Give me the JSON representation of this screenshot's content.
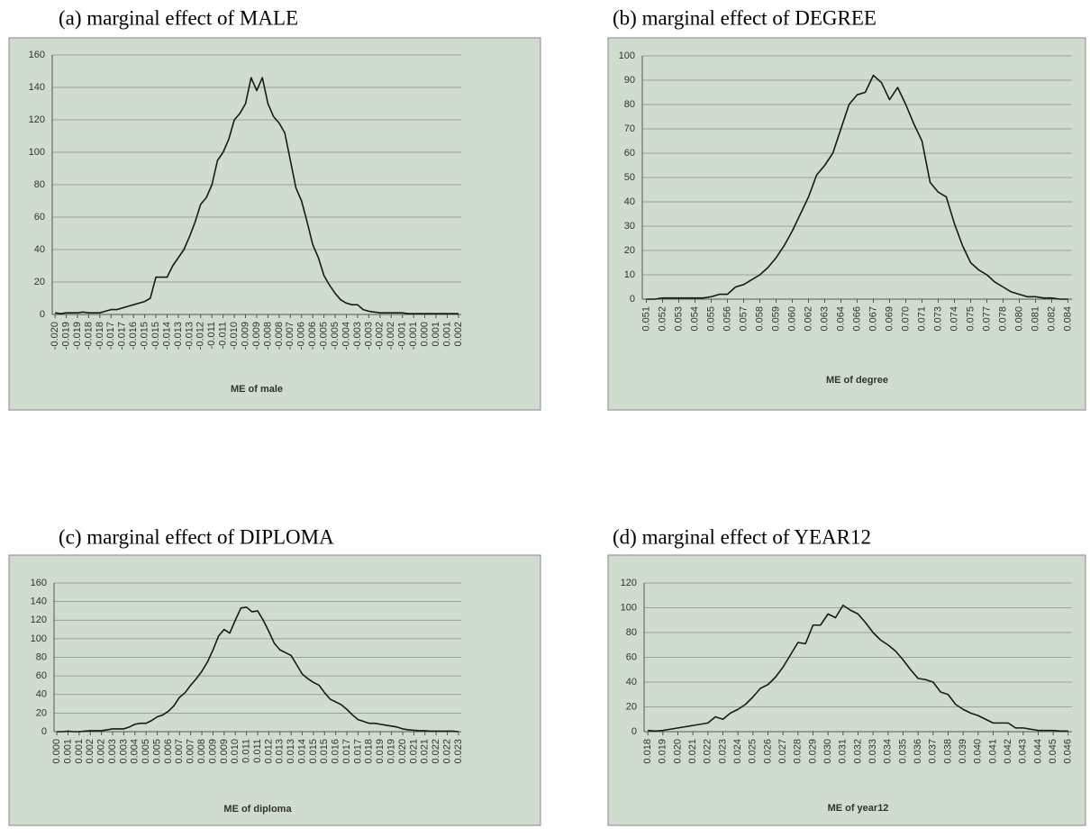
{
  "chart_data": [
    {
      "type": "line",
      "title": "(a) marginal effect of MALE",
      "x_label": "ME of male",
      "color": "#1a1a1a",
      "grid": true,
      "ylim": [
        0,
        160
      ],
      "yticks": [
        0,
        20,
        40,
        60,
        80,
        100,
        120,
        140,
        160
      ],
      "categories": [
        "-0.020",
        null,
        "-0.019",
        null,
        "-0.019",
        null,
        "-0.018",
        null,
        "-0.018",
        null,
        "-0.017",
        null,
        "-0.017",
        null,
        "-0.016",
        null,
        "-0.015",
        null,
        "-0.015",
        null,
        "-0.014",
        null,
        "-0.013",
        null,
        "-0.013",
        null,
        "-0.012",
        null,
        "-0.011",
        null,
        "-0.011",
        null,
        "-0.010",
        null,
        "-0.009",
        null,
        "-0.009",
        null,
        "-0.008",
        null,
        "-0.008",
        null,
        "-0.007",
        null,
        "-0.006",
        null,
        "-0.006",
        null,
        "-0.005",
        null,
        "-0.005",
        null,
        "-0.004",
        null,
        "-0.003",
        null,
        "-0.003",
        null,
        "-0.002",
        null,
        "-0.002",
        null,
        "-0.001",
        null,
        "-0.001",
        null,
        "0.000",
        null,
        "0.001",
        null,
        "0.001",
        null,
        "0.002"
      ],
      "values": [
        1,
        0.5,
        1,
        1,
        1,
        1.5,
        1,
        1,
        1,
        2,
        3,
        3,
        4,
        5,
        6,
        7,
        8,
        10,
        23,
        23,
        23,
        30,
        35,
        40,
        48,
        57,
        68,
        72,
        80,
        95,
        100,
        108,
        120,
        124,
        130,
        146,
        138,
        146,
        130,
        122,
        118,
        112,
        95,
        78,
        70,
        57,
        43,
        35,
        24,
        18,
        13,
        9,
        7,
        6,
        6,
        3,
        2,
        1.5,
        1,
        1,
        1,
        1,
        1,
        0.5,
        0.5,
        0.5,
        0.5,
        0.5,
        0.5,
        0.5,
        0.5,
        0.5,
        0.5
      ]
    },
    {
      "type": "line",
      "title": "(b) marginal effect of DEGREE",
      "x_label": "ME of degree",
      "color": "#1a1a1a",
      "grid": true,
      "ylim": [
        0,
        100
      ],
      "yticks": [
        0,
        10,
        20,
        30,
        40,
        50,
        60,
        70,
        80,
        90,
        100
      ],
      "categories": [
        "0.051",
        null,
        "0.052",
        null,
        "0.053",
        null,
        "0.054",
        null,
        "0.055",
        null,
        "0.056",
        null,
        "0.057",
        null,
        "0.058",
        null,
        "0.059",
        null,
        "0.060",
        null,
        "0.062",
        null,
        "0.063",
        null,
        "0.064",
        null,
        "0.066",
        null,
        "0.067",
        null,
        "0.069",
        null,
        "0.070",
        null,
        "0.071",
        null,
        "0.073",
        null,
        "0.074",
        null,
        "0.075",
        null,
        "0.077",
        null,
        "0.078",
        null,
        "0.080",
        null,
        "0.081",
        null,
        "0.082",
        null,
        "0.084"
      ],
      "values": [
        0,
        0,
        0.5,
        0.5,
        0.5,
        0.5,
        0.5,
        0.5,
        1,
        2,
        2,
        5,
        6,
        8,
        10,
        13,
        17,
        22,
        28,
        35,
        42,
        51,
        55,
        60,
        70,
        80,
        84,
        85,
        92,
        89,
        82,
        87,
        80,
        72,
        65,
        48,
        44,
        42,
        31,
        22,
        15,
        12,
        10,
        7,
        5,
        3,
        2,
        1,
        1,
        0.5,
        0.5,
        0,
        0
      ]
    },
    {
      "type": "line",
      "title": "(c) marginal effect of DIPLOMA",
      "x_label": "ME of diploma",
      "color": "#1a1a1a",
      "grid": true,
      "ylim": [
        0,
        160
      ],
      "yticks": [
        0,
        20,
        40,
        60,
        80,
        100,
        120,
        140,
        160
      ],
      "categories": [
        "0.000",
        null,
        "0.001",
        null,
        "0.001",
        null,
        "0.002",
        null,
        "0.002",
        null,
        "0.003",
        null,
        "0.003",
        null,
        "0.004",
        null,
        "0.005",
        null,
        "0.005",
        null,
        "0.006",
        null,
        "0.007",
        null,
        "0.007",
        null,
        "0.008",
        null,
        "0.009",
        null,
        "0.009",
        null,
        "0.010",
        null,
        "0.011",
        null,
        "0.011",
        null,
        "0.012",
        null,
        "0.013",
        null,
        "0.013",
        null,
        "0.014",
        null,
        "0.015",
        null,
        "0.015",
        null,
        "0.016",
        null,
        "0.017",
        null,
        "0.017",
        null,
        "0.018",
        null,
        "0.019",
        null,
        "0.019",
        null,
        "0.020",
        null,
        "0.021",
        null,
        "0.021",
        null,
        "0.022",
        null,
        "0.022",
        null,
        "0.023"
      ],
      "values": [
        0,
        0,
        0.5,
        0,
        0,
        0.5,
        1,
        1,
        1,
        2,
        3,
        3,
        3,
        5,
        8,
        9,
        9,
        12,
        16,
        18,
        22,
        28,
        37,
        42,
        50,
        57,
        65,
        75,
        88,
        103,
        110,
        106,
        120,
        133,
        134,
        129,
        130,
        120,
        108,
        95,
        88,
        85,
        82,
        72,
        62,
        57,
        53,
        50,
        42,
        35,
        32,
        29,
        24,
        18,
        13,
        11,
        9,
        9,
        8,
        7,
        6,
        5,
        3,
        2,
        1.5,
        1,
        1,
        0.5,
        0.5,
        0.5,
        0.5,
        0.5,
        0
      ]
    },
    {
      "type": "line",
      "title": "(d) marginal effect of YEAR12",
      "x_label": "ME of year12",
      "color": "#1a1a1a",
      "grid": true,
      "ylim": [
        0,
        120
      ],
      "yticks": [
        0,
        20,
        40,
        60,
        80,
        100,
        120
      ],
      "categories": [
        "0.018",
        null,
        "0.019",
        null,
        "0.020",
        null,
        "0.021",
        null,
        "0.022",
        null,
        "0.023",
        null,
        "0.024",
        null,
        "0.025",
        null,
        "0.026",
        null,
        "0.027",
        null,
        "0.028",
        null,
        "0.029",
        null,
        "0.030",
        null,
        "0.031",
        null,
        "0.032",
        null,
        "0.033",
        null,
        "0.034",
        null,
        "0.035",
        null,
        "0.036",
        null,
        "0.037",
        null,
        "0.038",
        null,
        "0.039",
        null,
        "0.040",
        null,
        "0.041",
        null,
        "0.042",
        null,
        "0.043",
        null,
        "0.044",
        null,
        "0.045",
        null,
        "0.046"
      ],
      "values": [
        1,
        0.5,
        1,
        2,
        3,
        4,
        5,
        6,
        7,
        12,
        10,
        15,
        18,
        22,
        28,
        35,
        38,
        44,
        52,
        62,
        72,
        71,
        86,
        86,
        95,
        92,
        102,
        98,
        95,
        88,
        80,
        74,
        70,
        65,
        58,
        50,
        43,
        42,
        40,
        32,
        30,
        22,
        18,
        15,
        13,
        10,
        7,
        7,
        7,
        3,
        3,
        2,
        1,
        1,
        1,
        0.5,
        0.5
      ]
    }
  ]
}
